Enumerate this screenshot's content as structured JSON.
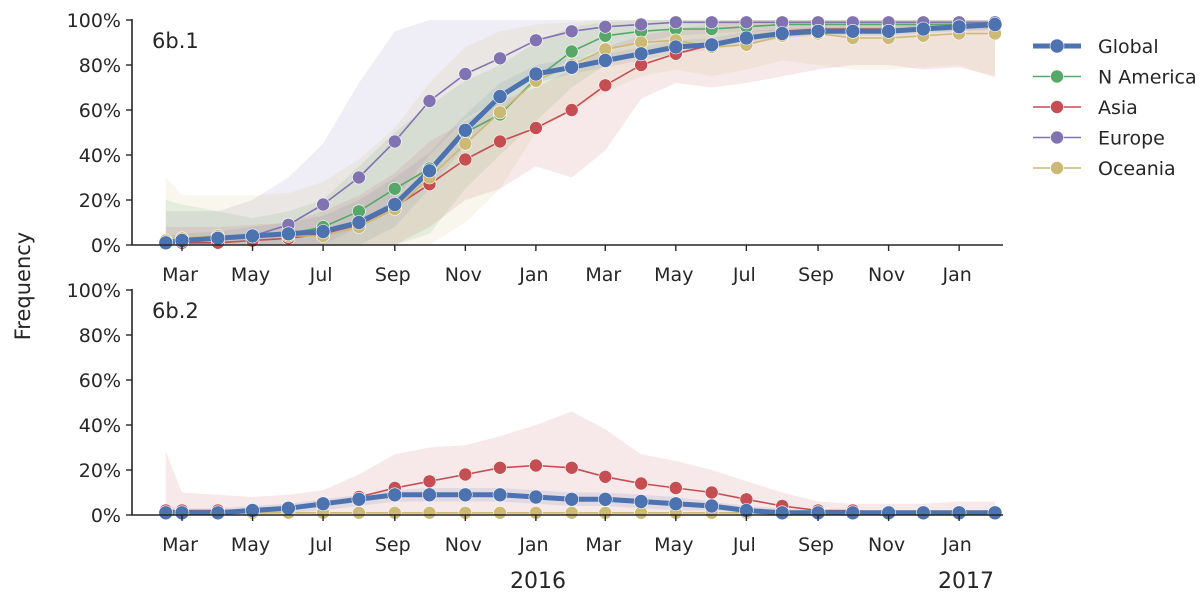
{
  "colors": {
    "Global": "#4c72b0",
    "N America": "#55a868",
    "Asia": "#c44e52",
    "Europe": "#8172b2",
    "Oceania": "#ccb974"
  },
  "chart_data": [
    {
      "type": "line",
      "panel_label": "6b.1",
      "ylabel": "Frequency",
      "ylim": [
        0,
        100
      ],
      "yticks": [
        "0%",
        "20%",
        "40%",
        "60%",
        "80%",
        "100%"
      ],
      "xticks": [
        "Mar",
        "May",
        "Jul",
        "Sep",
        "Nov",
        "Jan",
        "Mar",
        "May",
        "Jul",
        "Sep",
        "Nov",
        "Jan"
      ],
      "x": [
        "2015-02-15",
        "2015-03-01",
        "2015-04-01",
        "2015-05-01",
        "2015-06-01",
        "2015-07-01",
        "2015-08-01",
        "2015-09-01",
        "2015-10-01",
        "2015-11-01",
        "2015-12-01",
        "2016-01-01",
        "2016-02-01",
        "2016-03-01",
        "2016-04-01",
        "2016-05-01",
        "2016-06-01",
        "2016-07-01",
        "2016-08-01",
        "2016-09-01",
        "2016-10-01",
        "2016-11-01",
        "2016-12-01",
        "2017-01-01",
        "2017-02-01"
      ],
      "legend": {
        "position": "right"
      },
      "series": [
        {
          "name": "Global",
          "values": [
            1,
            2,
            3,
            4,
            5,
            6,
            10,
            18,
            33,
            51,
            66,
            76,
            79,
            82,
            85,
            88,
            89,
            92,
            94,
            95,
            95,
            95,
            96,
            97,
            98
          ]
        },
        {
          "name": "N America",
          "values": [
            1,
            2,
            3,
            4,
            5,
            8,
            15,
            25,
            34,
            50,
            58,
            74,
            86,
            93,
            95,
            96,
            96,
            97,
            98,
            98,
            98,
            98,
            98,
            98,
            99
          ]
        },
        {
          "name": "Asia",
          "values": [
            1,
            1,
            1,
            2,
            3,
            5,
            9,
            17,
            27,
            38,
            46,
            52,
            60,
            71,
            80,
            85,
            89,
            92,
            95,
            96,
            96,
            96,
            96,
            97,
            97
          ]
        },
        {
          "name": "Europe",
          "values": [
            1,
            2,
            3,
            4,
            9,
            18,
            30,
            46,
            64,
            76,
            83,
            91,
            95,
            97,
            98,
            99,
            99,
            99,
            99,
            99,
            99,
            99,
            99,
            99,
            99
          ]
        },
        {
          "name": "Oceania",
          "values": [
            2,
            3,
            4,
            4,
            4,
            4,
            8,
            16,
            30,
            45,
            59,
            73,
            80,
            87,
            90,
            91,
            88,
            89,
            93,
            94,
            92,
            92,
            93,
            94,
            94
          ]
        }
      ],
      "bands": [
        {
          "name": "Global",
          "lower": [
            0,
            0,
            0,
            0,
            0,
            0,
            0,
            8,
            25,
            44,
            60,
            72,
            76,
            79,
            82,
            85,
            87,
            89,
            92,
            93,
            93,
            93,
            94,
            95,
            96
          ],
          "upper": [
            4,
            5,
            6,
            8,
            10,
            13,
            20,
            30,
            41,
            58,
            72,
            80,
            83,
            85,
            88,
            91,
            92,
            95,
            96,
            97,
            97,
            97,
            98,
            99,
            99
          ]
        },
        {
          "name": "N America",
          "lower": [
            0,
            0,
            0,
            0,
            0,
            0,
            0,
            0,
            5,
            25,
            40,
            55,
            70,
            80,
            85,
            88,
            90,
            92,
            94,
            95,
            95,
            95,
            95,
            96,
            96
          ],
          "upper": [
            20,
            18,
            15,
            12,
            15,
            20,
            35,
            50,
            62,
            73,
            80,
            90,
            97,
            99,
            100,
            100,
            100,
            100,
            100,
            100,
            100,
            100,
            100,
            100,
            100
          ]
        },
        {
          "name": "Asia",
          "lower": [
            0,
            0,
            0,
            0,
            0,
            0,
            0,
            0,
            8,
            20,
            25,
            35,
            30,
            42,
            65,
            72,
            70,
            72,
            75,
            78,
            80,
            80,
            78,
            79,
            75
          ],
          "upper": [
            8,
            8,
            8,
            9,
            10,
            15,
            22,
            32,
            46,
            55,
            64,
            70,
            78,
            88,
            93,
            96,
            98,
            100,
            100,
            100,
            100,
            100,
            100,
            100,
            100
          ]
        },
        {
          "name": "Europe",
          "lower": [
            0,
            0,
            0,
            0,
            0,
            0,
            8,
            20,
            40,
            56,
            65,
            75,
            82,
            87,
            90,
            93,
            94,
            95,
            95,
            95,
            95,
            95,
            95,
            95,
            95
          ],
          "upper": [
            15,
            15,
            15,
            20,
            30,
            45,
            72,
            95,
            100,
            100,
            100,
            100,
            100,
            100,
            100,
            100,
            100,
            100,
            100,
            100,
            100,
            100,
            100,
            100,
            100
          ]
        },
        {
          "name": "Oceania",
          "lower": [
            0,
            0,
            0,
            0,
            0,
            0,
            0,
            0,
            0,
            10,
            25,
            50,
            60,
            68,
            75,
            78,
            75,
            78,
            82,
            80,
            78,
            78,
            79,
            80,
            74
          ],
          "upper": [
            30,
            22,
            22,
            22,
            23,
            28,
            38,
            52,
            72,
            88,
            95,
            98,
            99,
            100,
            100,
            100,
            100,
            100,
            100,
            100,
            100,
            100,
            100,
            100,
            100
          ]
        }
      ]
    },
    {
      "type": "line",
      "panel_label": "6b.2",
      "ylabel": "Frequency",
      "ylim": [
        0,
        100
      ],
      "yticks": [
        "0%",
        "20%",
        "40%",
        "60%",
        "80%",
        "100%"
      ],
      "xticks": [
        "Mar",
        "May",
        "Jul",
        "Sep",
        "Nov",
        "Jan",
        "Mar",
        "May",
        "Jul",
        "Sep",
        "Nov",
        "Jan"
      ],
      "x": [
        "2015-02-15",
        "2015-03-01",
        "2015-04-01",
        "2015-05-01",
        "2015-06-01",
        "2015-07-01",
        "2015-08-01",
        "2015-09-01",
        "2015-10-01",
        "2015-11-01",
        "2015-12-01",
        "2016-01-01",
        "2016-02-01",
        "2016-03-01",
        "2016-04-01",
        "2016-05-01",
        "2016-06-01",
        "2016-07-01",
        "2016-08-01",
        "2016-09-01",
        "2016-10-01",
        "2016-11-01",
        "2016-12-01",
        "2017-01-01",
        "2017-02-01"
      ],
      "xgroup_labels": [
        "2016",
        "2017"
      ],
      "series": [
        {
          "name": "Global",
          "values": [
            1,
            1,
            1,
            2,
            3,
            5,
            7,
            9,
            9,
            9,
            9,
            8,
            7,
            7,
            6,
            5,
            4,
            2,
            1,
            1,
            1,
            1,
            1,
            1,
            1
          ]
        },
        {
          "name": "Asia",
          "values": [
            2,
            2,
            2,
            2,
            3,
            5,
            8,
            12,
            15,
            18,
            21,
            22,
            21,
            17,
            14,
            12,
            10,
            7,
            4,
            2,
            2,
            1,
            1,
            1,
            1
          ]
        },
        {
          "name": "Oceania",
          "values": [
            1,
            1,
            1,
            1,
            1,
            1,
            1,
            1,
            1,
            1,
            1,
            1,
            1,
            1,
            1,
            1,
            1,
            1,
            1,
            1,
            1,
            1,
            1,
            1,
            1
          ]
        }
      ],
      "bands": [
        {
          "name": "Asia",
          "lower": [
            0,
            0,
            0,
            0,
            0,
            0,
            0,
            0,
            0,
            0,
            0,
            0,
            0,
            0,
            0,
            0,
            0,
            0,
            0,
            0,
            0,
            0,
            0,
            0,
            0
          ],
          "upper": [
            28,
            10,
            9,
            8,
            9,
            11,
            18,
            27,
            30,
            31,
            35,
            40,
            46,
            38,
            27,
            24,
            20,
            15,
            10,
            6,
            5,
            5,
            5,
            6,
            6
          ]
        },
        {
          "name": "Global",
          "lower": [
            0,
            0,
            0,
            0,
            1,
            2,
            4,
            6,
            6,
            6,
            6,
            5,
            4,
            4,
            3,
            2,
            2,
            1,
            0,
            0,
            0,
            0,
            0,
            0,
            0
          ],
          "upper": [
            4,
            3,
            3,
            4,
            5,
            7,
            9,
            11,
            12,
            12,
            12,
            11,
            10,
            10,
            9,
            8,
            6,
            4,
            3,
            2,
            2,
            2,
            2,
            2,
            2
          ]
        }
      ]
    }
  ]
}
